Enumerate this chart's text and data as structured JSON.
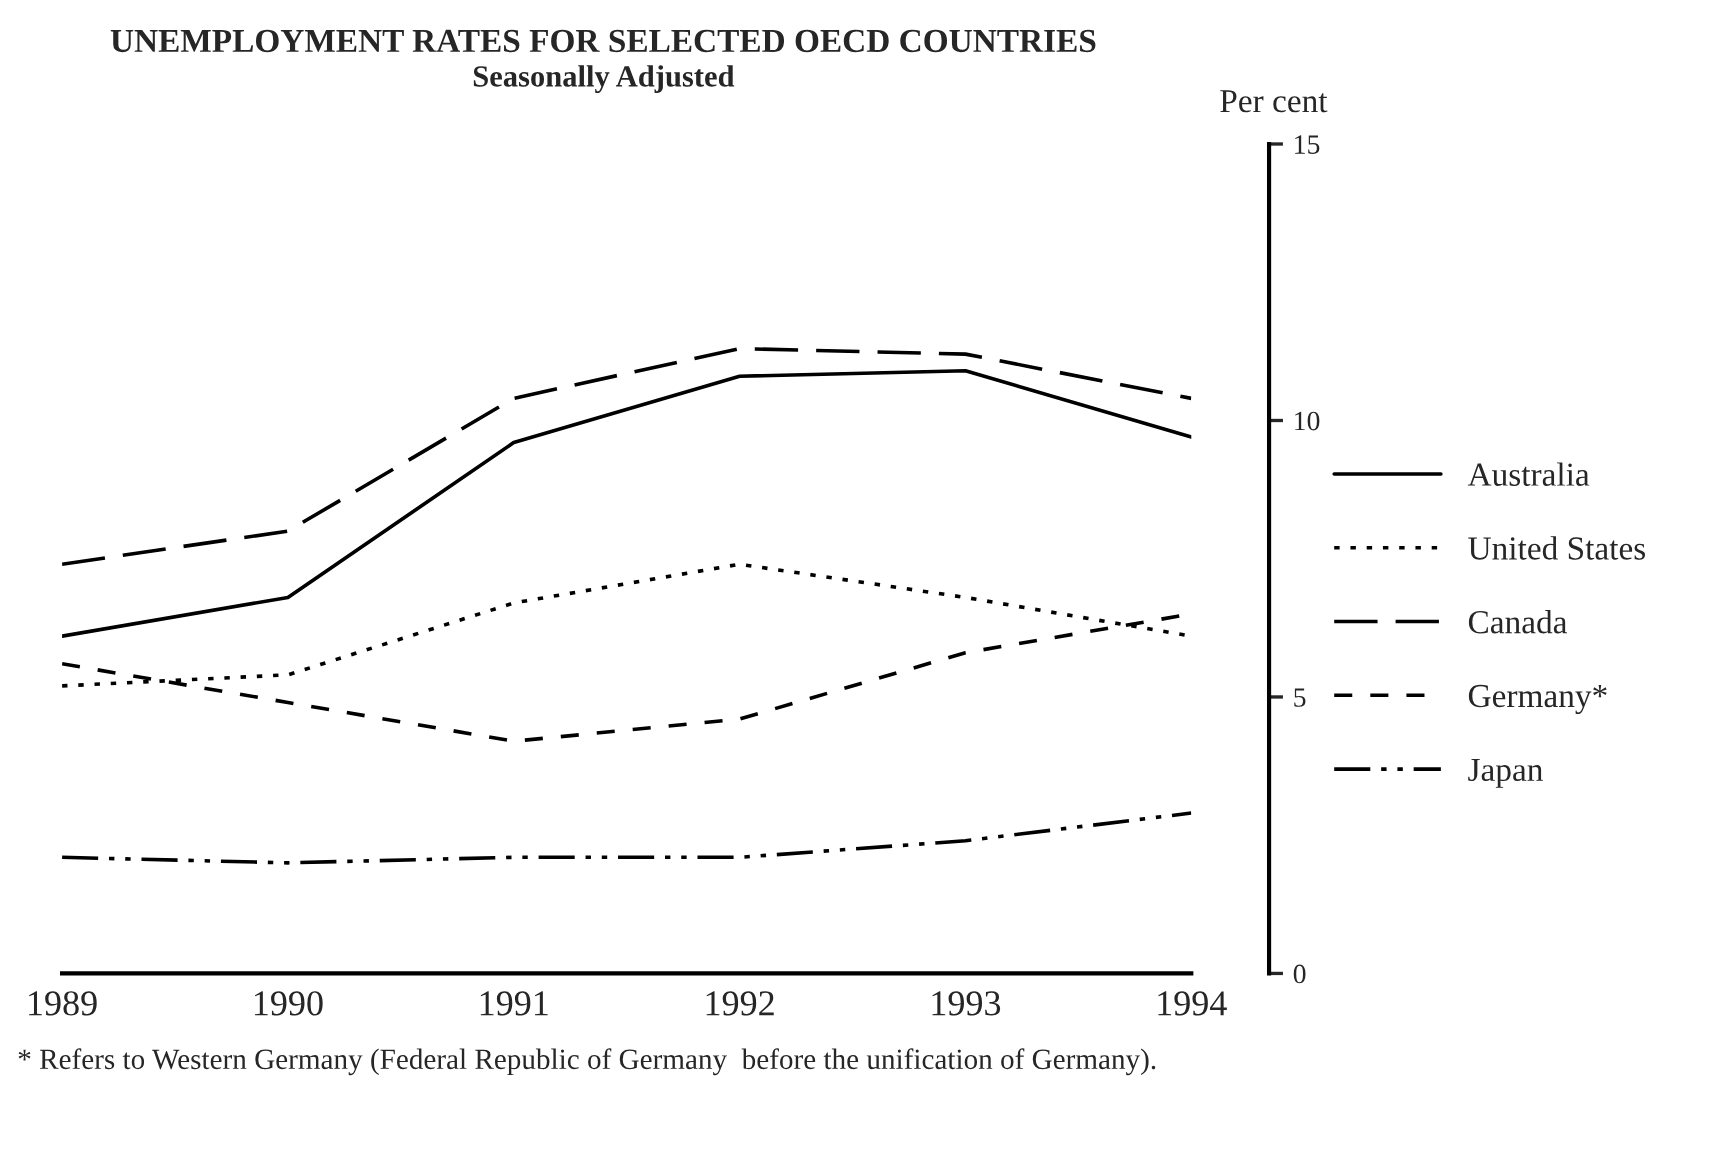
{
  "chart_data": {
    "type": "line",
    "title": "UNEMPLOYMENT RATES FOR SELECTED OECD COUNTRIES",
    "subtitle": "Seasonally Adjusted",
    "ylabel": "Per cent",
    "x": [
      1989,
      1990,
      1991,
      1992,
      1993,
      1994
    ],
    "series": [
      {
        "name": "Australia",
        "color": "#000000",
        "line_style": "solid",
        "values": [
          6.1,
          6.8,
          9.6,
          10.8,
          10.9,
          9.7
        ]
      },
      {
        "name": "United States",
        "color": "#000000",
        "line_style": "dotted",
        "values": [
          5.2,
          5.4,
          6.7,
          7.4,
          6.8,
          6.1
        ]
      },
      {
        "name": "Canada",
        "color": "#000000",
        "line_style": "longdashed",
        "values": [
          7.4,
          8.0,
          10.4,
          11.3,
          11.2,
          10.4
        ]
      },
      {
        "name": "Germany*",
        "color": "#000000",
        "line_style": "dashed",
        "values": [
          5.6,
          4.9,
          4.2,
          4.6,
          5.8,
          6.5
        ]
      },
      {
        "name": "Japan",
        "color": "#000000",
        "line_style": "dashdotdot",
        "values": [
          2.1,
          2.0,
          2.1,
          2.1,
          2.4,
          2.9
        ]
      }
    ],
    "xlim": [
      1989,
      1994
    ],
    "xticks": [
      1989,
      1990,
      1991,
      1992,
      1993,
      1994
    ],
    "ylim": [
      0,
      15
    ],
    "yticks": [
      0,
      5,
      10,
      15
    ],
    "grid": false,
    "legend": "right",
    "annotations": [
      "* Refers to Western Germany (Federal Republic of Germany  before the unification of Germany)."
    ]
  }
}
